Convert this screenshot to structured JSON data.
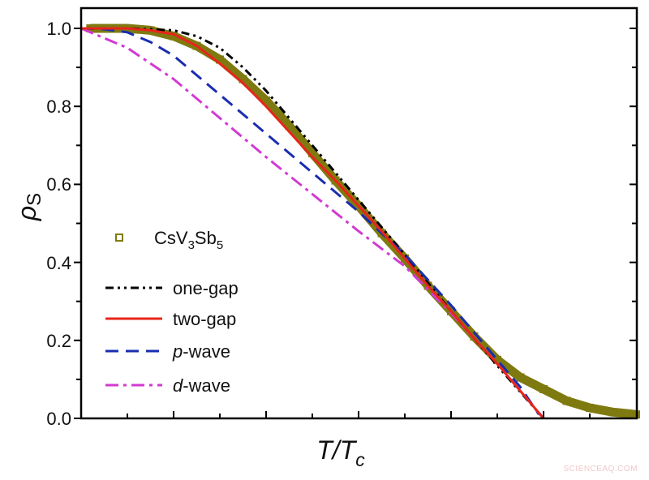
{
  "chart_data": {
    "type": "line",
    "xlabel": "T/Tc",
    "xlabel_main": "T/T",
    "xlabel_sub": "c",
    "ylabel": "ρs",
    "ylabel_main": "ρ",
    "ylabel_sub": "S",
    "xlim": [
      0,
      1.2
    ],
    "ylim": [
      0,
      1.0
    ],
    "xticks_labeled": false,
    "yticks": [
      "0.0",
      "0.2",
      "0.4",
      "0.6",
      "0.8",
      "1.0"
    ],
    "grid": false,
    "legend_position": "left-center",
    "series": [
      {
        "name": "CsV3Sb5",
        "label_parts": [
          "CsV",
          "3",
          "Sb",
          "5"
        ],
        "kind": "marker",
        "marker": "square-open",
        "color": "#7f7a10",
        "x": [
          0.02,
          0.05,
          0.1,
          0.15,
          0.2,
          0.25,
          0.3,
          0.35,
          0.4,
          0.45,
          0.5,
          0.55,
          0.6,
          0.65,
          0.7,
          0.75,
          0.8,
          0.85,
          0.9,
          0.95,
          1.0,
          1.05,
          1.1,
          1.15,
          1.2
        ],
        "y": [
          1.0,
          1.0,
          1.0,
          0.995,
          0.98,
          0.955,
          0.92,
          0.87,
          0.815,
          0.75,
          0.68,
          0.61,
          0.545,
          0.475,
          0.41,
          0.34,
          0.275,
          0.21,
          0.15,
          0.105,
          0.075,
          0.045,
          0.027,
          0.016,
          0.01
        ]
      },
      {
        "name": "one-gap",
        "kind": "line",
        "dash": "dash-dot-dot",
        "color": "#000000",
        "x": [
          0,
          0.1,
          0.2,
          0.25,
          0.3,
          0.35,
          0.4,
          0.45,
          0.5,
          0.6,
          0.7,
          0.8,
          0.9,
          1.0
        ],
        "y": [
          1,
          1,
          0.995,
          0.98,
          0.95,
          0.9,
          0.84,
          0.77,
          0.7,
          0.56,
          0.42,
          0.275,
          0.135,
          0
        ]
      },
      {
        "name": "two-gap",
        "kind": "line",
        "dash": "solid",
        "color": "#e8251b",
        "x": [
          0,
          0.05,
          0.1,
          0.15,
          0.2,
          0.25,
          0.3,
          0.35,
          0.4,
          0.45,
          0.5,
          0.55,
          0.6,
          0.65,
          0.7,
          0.75,
          0.8,
          0.85,
          0.9,
          0.95,
          1.0
        ],
        "y": [
          1,
          1,
          1,
          0.995,
          0.985,
          0.955,
          0.91,
          0.86,
          0.8,
          0.735,
          0.67,
          0.61,
          0.545,
          0.48,
          0.41,
          0.34,
          0.275,
          0.205,
          0.14,
          0.07,
          0
        ]
      },
      {
        "name": "p-wave",
        "name_italic": "p",
        "name_rest": "-wave",
        "kind": "line",
        "dash": "dash",
        "color": "#1a2db0",
        "x": [
          0,
          0.05,
          0.1,
          0.15,
          0.2,
          0.3,
          0.4,
          0.5,
          0.6,
          0.7,
          0.8,
          0.9,
          0.95,
          0.99
        ],
        "y": [
          1,
          0.998,
          0.99,
          0.965,
          0.93,
          0.83,
          0.73,
          0.63,
          0.53,
          0.42,
          0.29,
          0.15,
          0.08,
          0.01
        ]
      },
      {
        "name": "d-wave",
        "name_italic": "d",
        "name_rest": "-wave",
        "kind": "line",
        "dash": "dash-dot",
        "color": "#d23ad2",
        "x": [
          0,
          0.1,
          0.2,
          0.3,
          0.4,
          0.5,
          0.6,
          0.7,
          0.8,
          0.9,
          1.0
        ],
        "y": [
          1,
          0.95,
          0.87,
          0.77,
          0.67,
          0.575,
          0.48,
          0.39,
          0.27,
          0.14,
          0
        ]
      }
    ]
  },
  "watermark": "SCIENCEAQ.COM"
}
